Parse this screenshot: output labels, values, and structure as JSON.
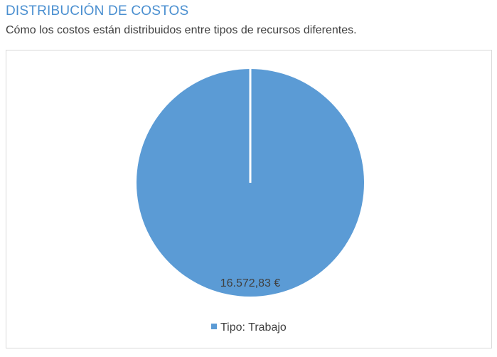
{
  "report": {
    "title": "DISTRIBUCIÓN DE COSTOS",
    "subtitle": "Cómo los costos están distribuidos entre tipos de recursos diferentes."
  },
  "chart_data": {
    "type": "pie",
    "title": "",
    "categories": [
      "Tipo: Trabajo"
    ],
    "values": [
      16572.83
    ],
    "data_labels": [
      "16.572,83 €"
    ],
    "colors": [
      "#5b9bd5"
    ],
    "legend": {
      "position": "bottom",
      "entries": [
        "Tipo: Trabajo"
      ]
    },
    "grid": false
  }
}
